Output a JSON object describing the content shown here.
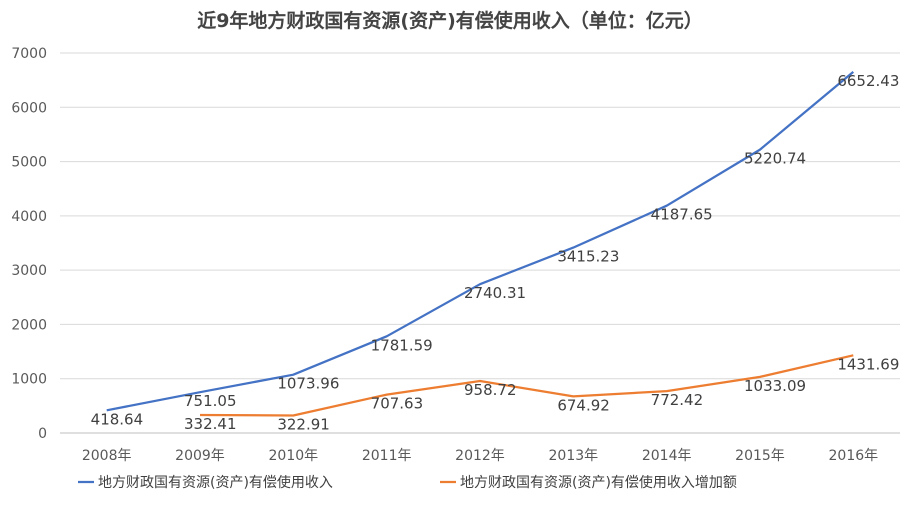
{
  "chart_data": {
    "type": "line",
    "title": "近9年地方财政国有资源(资产)有偿使用收入（单位：亿元）",
    "categories": [
      "2008年",
      "2009年",
      "2010年",
      "2011年",
      "2012年",
      "2013年",
      "2014年",
      "2015年",
      "2016年"
    ],
    "series": [
      {
        "name": "地方财政国有资源(资产)有偿使用收入",
        "color": "#4472c4",
        "values": [
          418.64,
          751.05,
          1073.96,
          1781.59,
          2740.31,
          3415.23,
          4187.65,
          5220.74,
          6652.43
        ],
        "labels": [
          "418.64",
          "751.05",
          "1073.96",
          "1781.59",
          "2740.31",
          "3415.23",
          "4187.65",
          "5220.74",
          "6652.43"
        ]
      },
      {
        "name": "地方财政国有资源(资产)有偿使用收入增加额",
        "color": "#ed7d31",
        "values": [
          null,
          332.41,
          322.91,
          707.63,
          958.72,
          674.92,
          772.42,
          1033.09,
          1431.69
        ],
        "labels": [
          null,
          "332.41",
          "322.91",
          "707.63",
          "958.72",
          "674.92",
          "772.42",
          "1033.09",
          "1431.69"
        ]
      }
    ],
    "y_ticks": [
      "0",
      "1000",
      "2000",
      "3000",
      "4000",
      "5000",
      "6000",
      "7000"
    ],
    "ylim": [
      0,
      7000
    ],
    "grid": true,
    "legend_position": "bottom"
  }
}
